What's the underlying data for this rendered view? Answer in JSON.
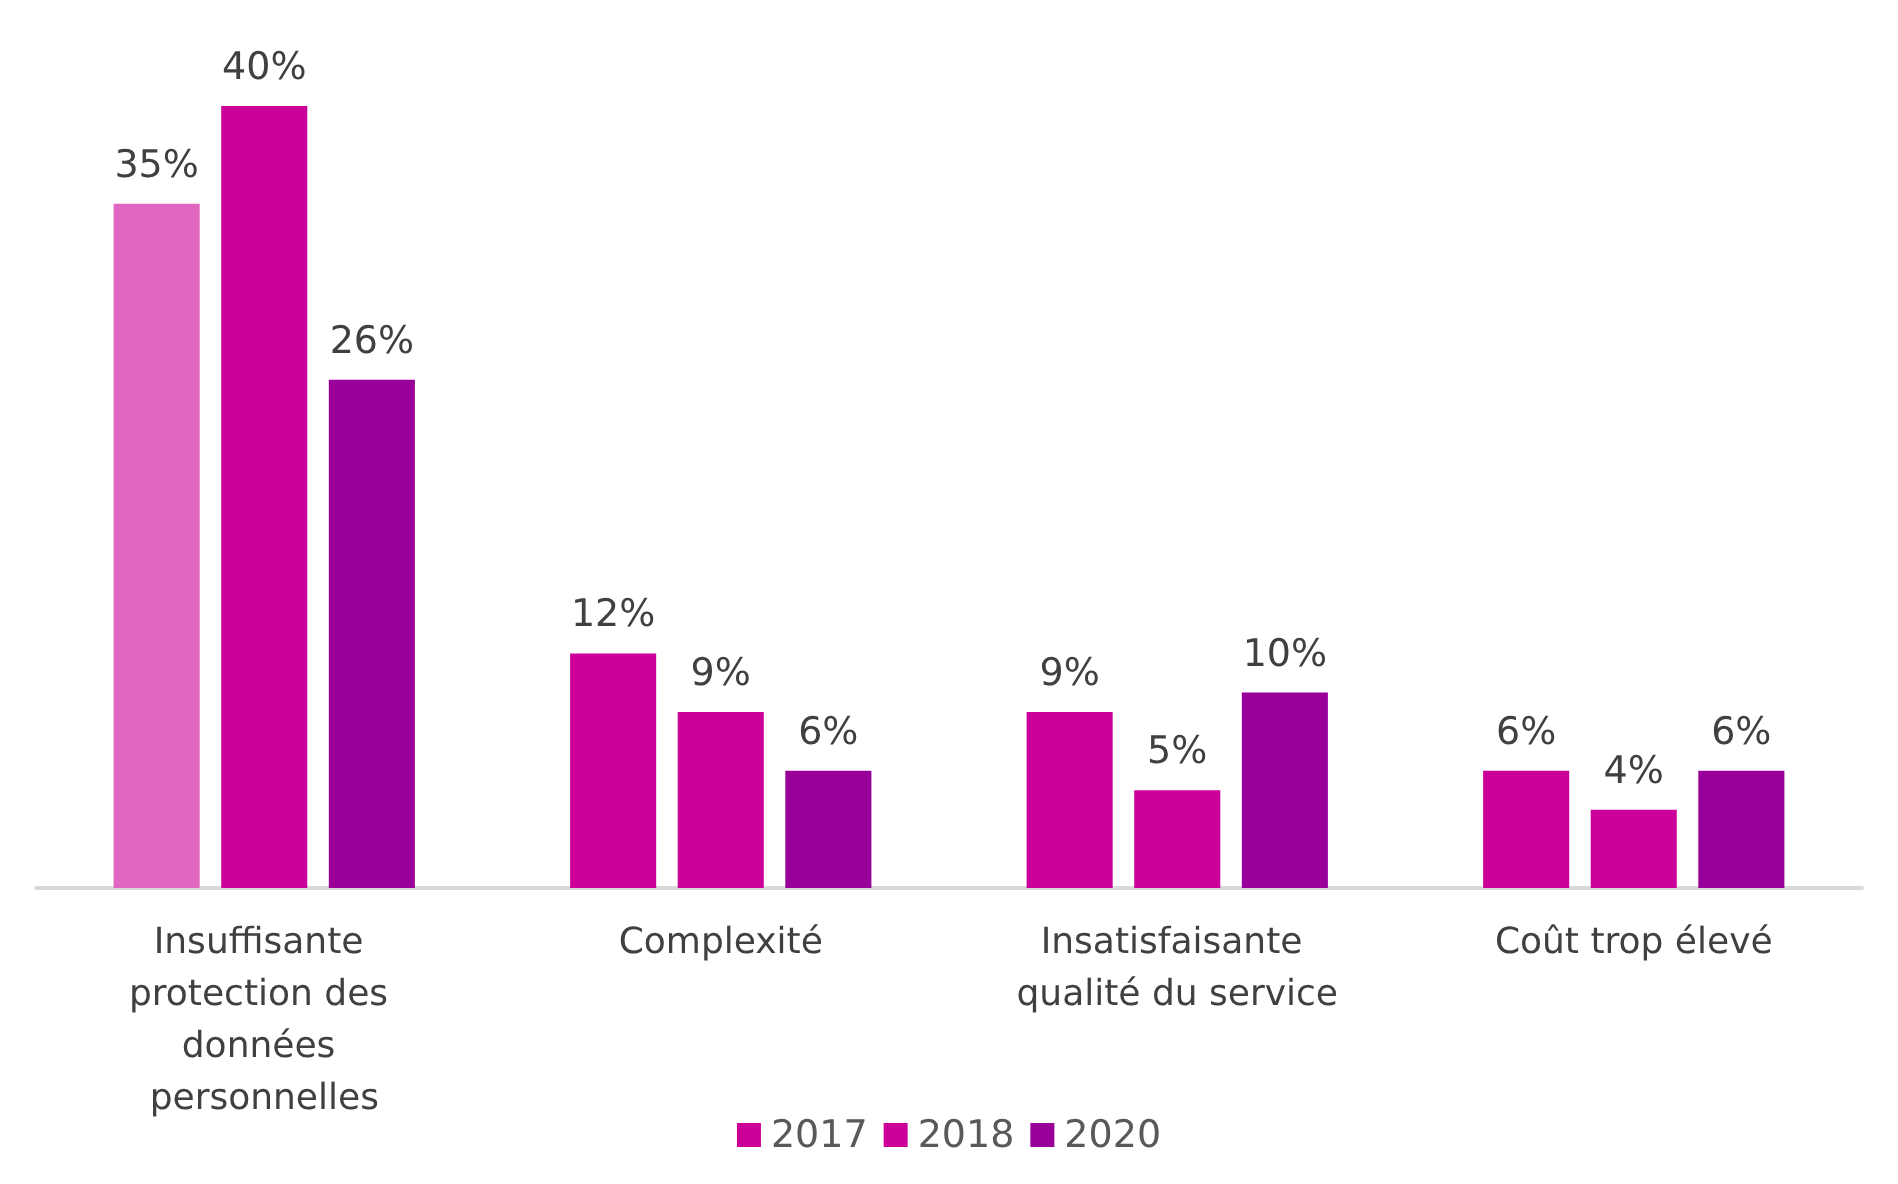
{
  "chart_data": {
    "type": "bar",
    "categories": [
      "Insuffisante protection des données personnelles",
      "Complexité",
      "Insatisfaisante qualité du service",
      "Coût trop élevé"
    ],
    "series": [
      {
        "name": "2017",
        "color": "#cc0099",
        "colors": [
          "#e066c0",
          "#cc0099",
          "#cc0099",
          "#cc0099"
        ],
        "values": [
          35,
          12,
          9,
          6
        ],
        "value_labels": [
          "35%",
          "12%",
          "9%",
          "6%"
        ]
      },
      {
        "name": "2018",
        "color": "#cc0099",
        "values": [
          40,
          9,
          5,
          4
        ],
        "value_labels": [
          "40%",
          "9%",
          "5%",
          "4%"
        ]
      },
      {
        "name": "2020",
        "color": "#990099",
        "values": [
          26,
          6,
          10,
          6
        ],
        "value_labels": [
          "26%",
          "6%",
          "10%",
          "6%"
        ]
      }
    ],
    "legend": "bottom",
    "tick_labels": "x"
  }
}
